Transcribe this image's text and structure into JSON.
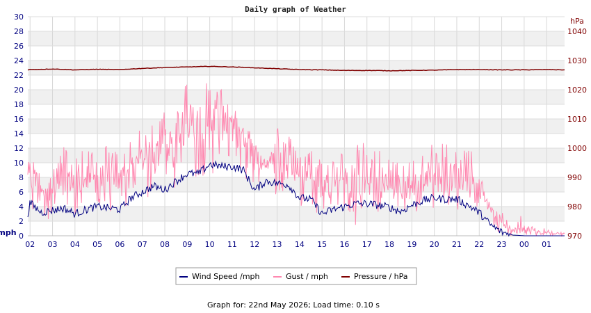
{
  "chart_data": {
    "type": "line",
    "title": "Daily graph of Weather",
    "ylabel_left": "mph",
    "ylabel_right": "hPa",
    "ylim_left": [
      0,
      30
    ],
    "ylim_right": [
      970,
      1045
    ],
    "yticks_left": [
      0,
      2,
      4,
      6,
      8,
      10,
      12,
      14,
      16,
      18,
      20,
      22,
      24,
      26,
      28,
      30
    ],
    "yticks_right": [
      970,
      980,
      990,
      1000,
      1010,
      1020,
      1030,
      1040
    ],
    "x_tick_labels": [
      "02",
      "03",
      "04",
      "05",
      "06",
      "07",
      "08",
      "09",
      "10",
      "11",
      "12",
      "13",
      "14",
      "15",
      "16",
      "17",
      "18",
      "19",
      "20",
      "21",
      "22",
      "23",
      "00",
      "01"
    ],
    "x_hours": [
      2,
      3,
      4,
      5,
      6,
      7,
      8,
      9,
      10,
      11,
      12,
      13,
      14,
      15,
      16,
      17,
      18,
      19,
      20,
      21,
      22,
      23,
      24,
      25
    ],
    "xlim_hours": [
      1.9,
      25.8
    ],
    "grid": true,
    "legend_position": "bottom-center",
    "series": [
      {
        "name": "Wind Speed /mph",
        "axis": "left",
        "color": "#000080",
        "x": [
          1.9,
          2.0,
          2.5,
          3.0,
          3.5,
          4.0,
          4.5,
          5.0,
          5.5,
          6.0,
          6.5,
          7.0,
          7.5,
          8.0,
          8.5,
          9.0,
          9.5,
          10.0,
          10.5,
          11.0,
          11.5,
          12.0,
          12.5,
          13.0,
          13.5,
          14.0,
          14.5,
          15.0,
          15.5,
          16.0,
          16.5,
          17.0,
          17.5,
          18.0,
          18.5,
          19.0,
          19.5,
          20.0,
          20.5,
          21.0,
          21.5,
          22.0,
          22.5,
          23.0,
          23.5,
          24.0,
          24.5,
          25.0,
          25.5,
          25.8
        ],
        "y": [
          3.0,
          4.5,
          3.2,
          3.5,
          3.8,
          3.0,
          3.6,
          4.0,
          3.8,
          3.6,
          5.2,
          6.0,
          6.8,
          6.3,
          7.5,
          8.5,
          8.5,
          9.8,
          9.5,
          9.5,
          9.0,
          6.2,
          7.5,
          7.2,
          7.0,
          5.2,
          5.0,
          3.0,
          3.6,
          4.0,
          4.4,
          4.4,
          4.2,
          3.9,
          3.3,
          4.2,
          4.8,
          5.2,
          5.0,
          5.0,
          4.2,
          3.2,
          1.5,
          0.5,
          0.1,
          0.0,
          0.0,
          0.0,
          0.0,
          0.0
        ]
      },
      {
        "name": "Gust / mph",
        "axis": "left",
        "color": "#ff88b0",
        "x": [
          1.9,
          2.0,
          2.5,
          3.0,
          3.5,
          4.0,
          4.5,
          5.0,
          5.5,
          6.0,
          6.5,
          7.0,
          7.5,
          8.0,
          8.5,
          9.0,
          9.5,
          10.0,
          10.5,
          11.0,
          11.5,
          12.0,
          12.5,
          13.0,
          13.5,
          14.0,
          14.5,
          15.0,
          15.5,
          16.0,
          16.5,
          17.0,
          17.5,
          18.0,
          18.5,
          19.0,
          19.5,
          20.0,
          20.5,
          21.0,
          21.5,
          22.0,
          22.5,
          23.0,
          23.5,
          24.0,
          24.5,
          25.0,
          25.5,
          25.8
        ],
        "y": [
          9.0,
          7.5,
          7.0,
          6.5,
          7.0,
          6.5,
          7.2,
          7.8,
          7.5,
          7.5,
          9.0,
          10.5,
          11.0,
          12.0,
          13.5,
          15.0,
          15.5,
          16.0,
          15.5,
          15.0,
          13.0,
          10.5,
          10.0,
          10.5,
          10.0,
          9.5,
          8.5,
          6.5,
          7.0,
          7.5,
          7.8,
          7.5,
          7.0,
          6.8,
          6.2,
          7.0,
          7.5,
          8.0,
          7.8,
          7.8,
          7.2,
          6.5,
          3.5,
          2.0,
          0.8,
          0.8,
          0.5,
          0.4,
          0.3,
          0.3
        ],
        "max": [
          9.5,
          10.3,
          12.0,
          11.0,
          12.5,
          12.5,
          12.0,
          12.5,
          12.5,
          11.5,
          13.0,
          15.0,
          16.0,
          18.5,
          19.5,
          22.0,
          21.0,
          21.0,
          20.5,
          19.0,
          17.0,
          13.5,
          13.0,
          15.5,
          14.0,
          12.5,
          12.0,
          11.5,
          11.0,
          12.0,
          12.5,
          13.0,
          12.0,
          11.0,
          10.0,
          11.5,
          11.5,
          13.0,
          13.0,
          12.5,
          13.0,
          9.0,
          4.0,
          3.5,
          1.5,
          3.5,
          1.5,
          1.0,
          0.5,
          0.5
        ],
        "min": [
          1.5,
          2.5,
          2.5,
          2.0,
          2.5,
          2.0,
          2.5,
          3.0,
          3.0,
          3.0,
          4.0,
          5.0,
          5.0,
          5.5,
          6.5,
          7.5,
          8.0,
          8.5,
          8.0,
          8.0,
          7.5,
          5.0,
          5.5,
          5.5,
          5.0,
          4.0,
          3.5,
          2.5,
          2.5,
          3.0,
          0.0,
          3.0,
          3.0,
          2.5,
          2.5,
          3.0,
          3.0,
          3.5,
          3.0,
          3.5,
          3.0,
          2.5,
          1.0,
          0.0,
          0.0,
          0.0,
          0.0,
          0.0,
          0.0,
          0.0
        ]
      },
      {
        "name": "Pressure / hPa",
        "axis": "right",
        "color": "#800000",
        "x": [
          1.9,
          2.0,
          3.0,
          4.0,
          5.0,
          6.0,
          7.0,
          8.0,
          9.0,
          10.0,
          11.0,
          12.0,
          13.0,
          14.0,
          15.0,
          16.0,
          17.0,
          18.0,
          19.0,
          20.0,
          21.0,
          22.0,
          23.0,
          24.0,
          25.0,
          25.8
        ],
        "y": [
          1026.8,
          1026.9,
          1027.1,
          1026.8,
          1027.0,
          1026.9,
          1027.3,
          1027.6,
          1027.8,
          1028.0,
          1027.8,
          1027.5,
          1027.2,
          1026.9,
          1026.8,
          1026.6,
          1026.6,
          1026.5,
          1026.6,
          1026.7,
          1026.9,
          1026.9,
          1026.8,
          1026.8,
          1026.9,
          1026.8
        ]
      }
    ]
  },
  "legend": {
    "wind": "Wind Speed /mph",
    "gust": "Gust / mph",
    "pressure": "Pressure / hPa"
  },
  "footer": "Graph for: 22nd May 2026; Load time: 0.10 s"
}
